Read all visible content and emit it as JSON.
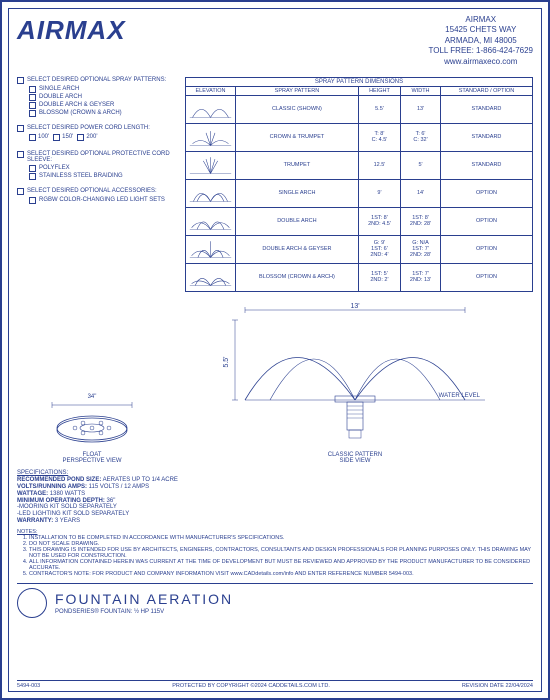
{
  "header": {
    "logo": "AIRMAX",
    "company_name": "AIRMAX",
    "address1": "15425 CHETS WAY",
    "address2": "ARMADA, MI 48005",
    "tollfree": "TOLL FREE: 1-866-424-7629",
    "website": "www.airmaxeco.com"
  },
  "options": {
    "spray_patterns": {
      "title": "SELECT DESIRED OPTIONAL SPRAY PATTERNS:",
      "items": [
        "SINGLE ARCH",
        "DOUBLE ARCH",
        "DOUBLE ARCH & GEYSER",
        "BLOSSOM (CROWN & ARCH)"
      ]
    },
    "cord_length": {
      "title": "SELECT DESIRED POWER CORD LENGTH:",
      "items": [
        "100'",
        "150'",
        "200'"
      ]
    },
    "sleeve": {
      "title": "SELECT DESIRED OPTIONAL PROTECTIVE CORD SLEEVE:",
      "items": [
        "POLYFLEX",
        "STAINLESS STEEL BRAIDING"
      ]
    },
    "accessories": {
      "title": "SELECT DESIRED OPTIONAL ACCESSORIES:",
      "items": [
        "RGBW COLOR-CHANGING LED LIGHT SETS"
      ]
    }
  },
  "table": {
    "title": "SPRAY PATTERN DIMENSIONS",
    "headers": [
      "ELEVATION",
      "SPRAY PATTERN",
      "HEIGHT",
      "WIDTH",
      "STANDARD / OPTION"
    ],
    "rows": [
      {
        "name": "CLASSIC (SHOWN)",
        "height": "5.5'",
        "width": "13'",
        "so": "STANDARD",
        "svg": "classic"
      },
      {
        "name": "CROWN  & TRUMPET",
        "height": "T: 8'\nC: 4.5'",
        "width": "T: 6'\nC: 32'",
        "so": "STANDARD",
        "svg": "crown_trumpet"
      },
      {
        "name": "TRUMPET",
        "height": "12.5'",
        "width": "5'",
        "so": "STANDARD",
        "svg": "trumpet"
      },
      {
        "name": "SINGLE ARCH",
        "height": "9'",
        "width": "14'",
        "so": "OPTION",
        "svg": "single_arch"
      },
      {
        "name": "DOUBLE ARCH",
        "height": "1ST: 8'\n2ND: 4.5'",
        "width": "1ST: 8'\n2ND: 28'",
        "so": "OPTION",
        "svg": "double_arch"
      },
      {
        "name": "DOUBLE ARCH & GEYSER",
        "height": "G: 9'\n1ST: 6'\n2ND: 4'",
        "width": "G: N/A\n1ST: 7'\n2ND: 28'",
        "so": "OPTION",
        "svg": "double_arch_geyser"
      },
      {
        "name": "BLOSSOM (CROWN & ARCH)",
        "height": "1ST: 5'\n2ND: 2'",
        "width": "1ST: 7'\n2ND: 13'",
        "so": "OPTION",
        "svg": "blossom"
      }
    ]
  },
  "diagrams": {
    "float_dim": "34\"",
    "float_label": "FLOAT\nPERSPECTIVE VIEW",
    "side_width": "13'",
    "side_height": "5.5'",
    "water_level": "WATER LEVEL",
    "side_label": "CLASSIC PATTERN\nSIDE VIEW"
  },
  "specs": {
    "heading": "SPECIFICATIONS:",
    "lines": [
      {
        "label": "RECOMMENDED POND SIZE:",
        "value": " AERATES UP TO 1/4 ACRE"
      },
      {
        "label": "VOLTS/RUNNING AMPS:",
        "value": " 115 VOLTS / 12 AMPS"
      },
      {
        "label": "WATTAGE:",
        "value": " 1380 WATTS"
      },
      {
        "label": "MINIMUM OPERATING DEPTH:",
        "value": " 36\""
      },
      {
        "label": "",
        "value": "-MOORING KIT SOLD SEPARATELY"
      },
      {
        "label": "",
        "value": "-LED LIGHTING KIT SOLD SEPARATELY"
      },
      {
        "label": "WARRANTY:",
        "value": " 3 YEARS"
      }
    ]
  },
  "notes": {
    "heading": "NOTES:",
    "items": [
      "INSTALLATION TO BE COMPLETED IN ACCORDANCE WITH MANUFACTURER'S SPECIFICATIONS.",
      "DO NOT SCALE DRAWING.",
      "THIS DRAWING IS INTENDED FOR USE BY ARCHITECTS, ENGINEERS, CONTRACTORS, CONSULTANTS AND DESIGN PROFESSIONALS FOR PLANNING PURPOSES ONLY. THIS DRAWING MAY NOT BE USED FOR CONSTRUCTION.",
      "ALL INFORMATION CONTAINED HEREIN WAS CURRENT AT THE TIME OF DEVELOPMENT BUT MUST BE REVIEWED AND APPROVED BY THE PRODUCT MANUFACTURER TO BE CONSIDERED ACCURATE.",
      "CONTRACTOR'S NOTE: FOR PRODUCT AND COMPANY INFORMATION VISIT www.CADdetails.com/info AND ENTER REFERENCE NUMBER 5494-003."
    ]
  },
  "title_block": {
    "main": "FOUNTAIN AERATION",
    "sub": "PONDSERIES® FOUNTAIN: ½ HP 115V"
  },
  "footer": {
    "ref": "5494-003",
    "copyright": "PROTECTED BY COPYRIGHT ©2024 CADDETAILS.COM LTD.",
    "rev": "REVISION DATE 22/04/2024"
  },
  "colors": {
    "line": "#2a3f8f"
  }
}
